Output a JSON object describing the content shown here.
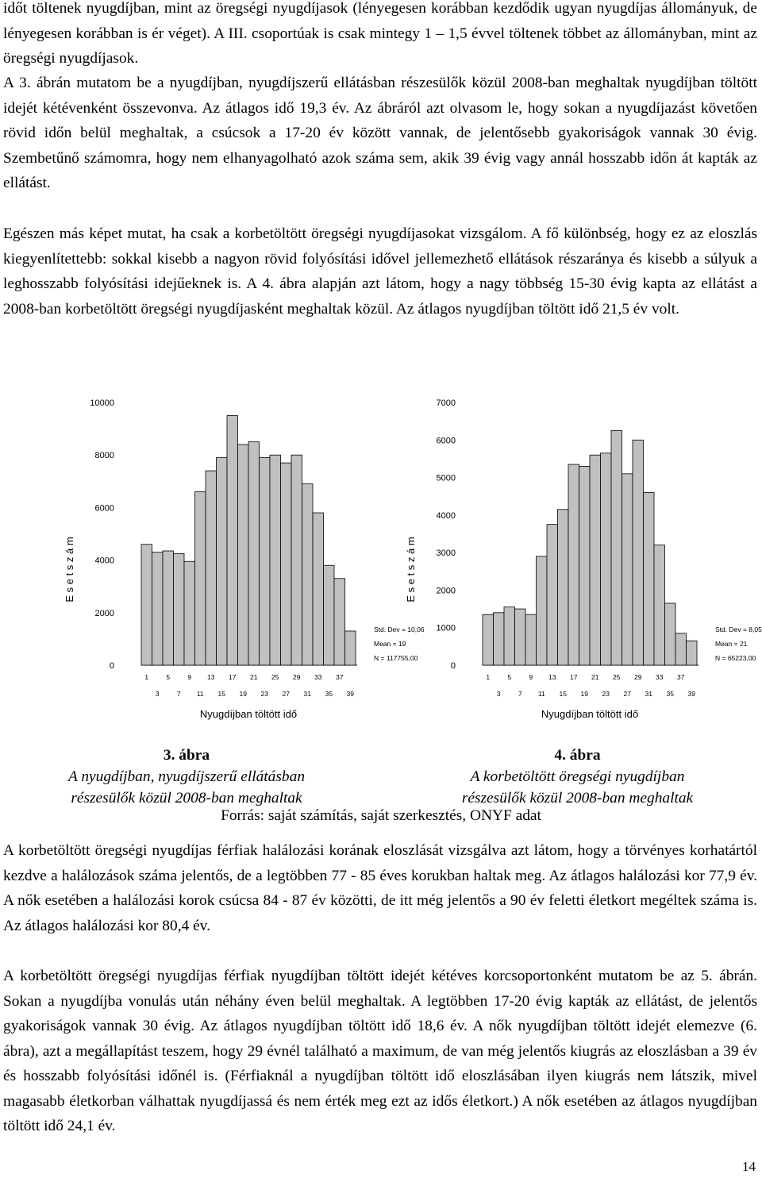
{
  "paragraphs": {
    "p0": "időt töltenek nyugdíjban, mint az öregségi nyugdíjasok (lényegesen korábban kezdődik ugyan nyugdíjas állományuk, de lényegesen korábban is ér véget). A III. csoportúak is csak mintegy 1 – 1,5 évvel töltenek többet az állományban, mint az öregségi nyugdíjasok.",
    "p1": "A 3. ábrán mutatom be a nyugdíjban, nyugdíjszerű ellátásban részesülők közül 2008-ban meghaltak nyugdíjban töltött idejét kétévenként összevonva. Az átlagos idő 19,3 év. Az ábráról azt olvasom le, hogy sokan a nyugdíjazást követően rövid időn belül meghaltak, a csúcsok a 17-20 év között vannak, de jelentősebb gyakoriságok vannak 30 évig. Szembetűnő számomra, hogy nem elhanyagolható azok száma sem, akik 39 évig vagy annál hosszabb időn át kapták az ellátást.",
    "p2": "Egészen más képet mutat, ha csak a korbetöltött öregségi nyugdíjasokat vizsgálom. A fő különbség, hogy ez az eloszlás kiegyenlítettebb: sokkal kisebb a nagyon rövid folyósítási idővel jellemezhető ellátások részaránya és kisebb a súlyuk a leghosszabb folyósítási idejűeknek is. A 4. ábra alapján azt látom, hogy a nagy többség 15-30 évig kapta az ellátást a 2008-ban korbetöltött öregségi nyugdíjasként meghaltak közül. Az átlagos nyugdíjban töltött idő 21,5 év volt.",
    "p3": "A korbetöltött öregségi nyugdíjas férfiak halálozási korának eloszlását vizsgálva azt látom, hogy a törvényes korhatártól kezdve a halálozások száma jelentős, de a legtöbben 77 - 85 éves korukban haltak meg. Az átlagos halálozási kor 77,9 év. A nők esetében a halálozási korok csúcsa 84 - 87 év közötti, de itt még jelentős a 90 év feletti életkort megéltek száma is. Az átlagos halálozási kor 80,4 év.",
    "p4": "A korbetöltött öregségi nyugdíjas férfiak nyugdíjban töltött idejét kétéves korcsoportonként mutatom be az 5. ábrán. Sokan a nyugdíjba vonulás után néhány éven belül meghaltak. A legtöbben 17-20 évig kapták az ellátást, de jelentős gyakoriságok vannak 30 évig. Az átlagos nyugdíjban töltött idő 18,6 év. A nők nyugdíjban töltött idejét elemezve (6. ábra), azt a megállapítást teszem, hogy 29 évnél található a maximum, de van még jelentős kiugrás az eloszlásban a 39 év és hosszabb folyósítási időnél is. (Férfiaknál a nyugdíjban töltött idő eloszlásában ilyen kiugrás nem látszik, mivel magasabb életkorban válhattak nyugdíjassá és nem érték meg ezt az idős életkort.) A nők esetében az átlagos nyugdíjban töltött idő 24,1 év."
  },
  "figures": {
    "fig3": {
      "number": "3. ábra",
      "line1": "A nyugdíjban, nyugdíjszerű ellátásban",
      "line2": "részesülők közül 2008-ban meghaltak"
    },
    "fig4": {
      "number": "4. ábra",
      "line1": "A korbetöltött öregségi nyugdíjban",
      "line2": "részesülők közül 2008-ban meghaltak"
    }
  },
  "source": "Forrás: saját számítás, saját szerkesztés, ONYF adat",
  "page_number": "14",
  "chart_data": [
    {
      "type": "bar",
      "ylabel": "E s e t s z á m",
      "xlabel": "Nyugdíjban töltött idő",
      "ylim": [
        0,
        10000
      ],
      "yticks": [
        "0",
        "2000",
        "4000",
        "6000",
        "8000",
        "10000"
      ],
      "x_ticks_row1": [
        "1",
        "5",
        "9",
        "13",
        "17",
        "21",
        "25",
        "29",
        "33",
        "37"
      ],
      "x_ticks_row2": [
        "3",
        "7",
        "11",
        "15",
        "19",
        "23",
        "27",
        "31",
        "35",
        "39"
      ],
      "categories": [
        "1",
        "3",
        "5",
        "7",
        "9",
        "11",
        "13",
        "15",
        "17",
        "19",
        "21",
        "23",
        "25",
        "27",
        "29",
        "31",
        "33",
        "35",
        "37",
        "39"
      ],
      "values": [
        4600,
        4300,
        4350,
        4250,
        3950,
        6600,
        7400,
        7900,
        9500,
        8400,
        8500,
        7900,
        8000,
        7700,
        8000,
        6900,
        5800,
        3800,
        3300,
        1300
      ],
      "stats": [
        "Std. Dev = 10,06",
        "Mean = 19",
        "N = 117755,00"
      ]
    },
    {
      "type": "bar",
      "ylabel": "E s e t s z á m",
      "xlabel": "Nyugdíjban töltött idő",
      "ylim": [
        0,
        7000
      ],
      "yticks": [
        "0",
        "1000",
        "2000",
        "3000",
        "4000",
        "5000",
        "6000",
        "7000"
      ],
      "x_ticks_row1": [
        "1",
        "5",
        "9",
        "13",
        "17",
        "21",
        "25",
        "29",
        "33",
        "37"
      ],
      "x_ticks_row2": [
        "3",
        "7",
        "11",
        "15",
        "19",
        "23",
        "27",
        "31",
        "35",
        "39"
      ],
      "categories": [
        "1",
        "3",
        "5",
        "7",
        "9",
        "11",
        "13",
        "15",
        "17",
        "19",
        "21",
        "23",
        "25",
        "27",
        "29",
        "31",
        "33",
        "35",
        "37",
        "39"
      ],
      "values": [
        1350,
        1400,
        1550,
        1500,
        1350,
        2900,
        3750,
        4150,
        5350,
        5300,
        5600,
        5650,
        6250,
        5100,
        6000,
        4600,
        3200,
        1650,
        850,
        650
      ],
      "stats": [
        "Std. Dev = 8,05",
        "Mean = 21",
        "N = 65223,00"
      ]
    }
  ]
}
